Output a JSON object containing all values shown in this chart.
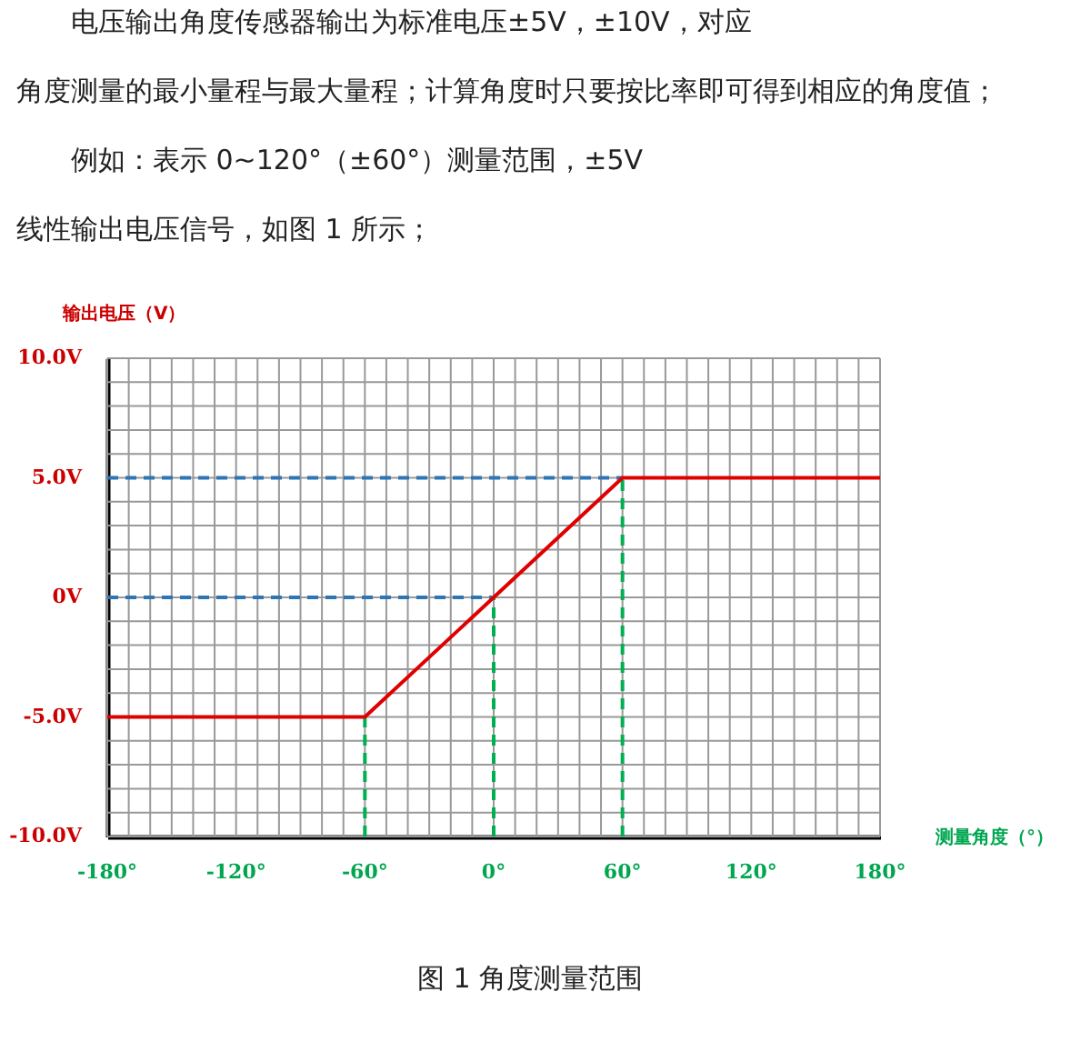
{
  "chart_data": {
    "type": "line",
    "annotations": [
      "电压输出角度传感器输出为标准电压±5V，±10V，对应",
      "角度测量的最小量程与最大量程；计算角度时只要按比率即可得到相应的角度值；",
      "例如：表示 0~120°（±60°）测量范围，±5V",
      "线性输出电压信号，如图 1 所示；",
      "图 1 角度测量范围"
    ],
    "xlabel": "测量角度（°）",
    "ylabel": "输出电压（V）",
    "xlim": [
      -180,
      180
    ],
    "ylim": [
      -10,
      10
    ],
    "xticks": [
      {
        "value": -180,
        "label": "-180°"
      },
      {
        "value": -170,
        "label": null
      },
      {
        "value": -160,
        "label": null
      },
      {
        "value": -150,
        "label": null
      },
      {
        "value": -140,
        "label": null
      },
      {
        "value": -130,
        "label": null
      },
      {
        "value": -120,
        "label": "-120°"
      },
      {
        "value": -110,
        "label": null
      },
      {
        "value": -100,
        "label": null
      },
      {
        "value": -90,
        "label": null
      },
      {
        "value": -80,
        "label": null
      },
      {
        "value": -70,
        "label": null
      },
      {
        "value": -60,
        "label": "-60°"
      },
      {
        "value": -50,
        "label": null
      },
      {
        "value": -40,
        "label": null
      },
      {
        "value": -30,
        "label": null
      },
      {
        "value": -20,
        "label": null
      },
      {
        "value": -10,
        "label": null
      },
      {
        "value": 0,
        "label": "0°"
      },
      {
        "value": 10,
        "label": null
      },
      {
        "value": 20,
        "label": null
      },
      {
        "value": 30,
        "label": null
      },
      {
        "value": 40,
        "label": null
      },
      {
        "value": 50,
        "label": null
      },
      {
        "value": 60,
        "label": "60°"
      },
      {
        "value": 70,
        "label": null
      },
      {
        "value": 80,
        "label": null
      },
      {
        "value": 90,
        "label": null
      },
      {
        "value": 100,
        "label": null
      },
      {
        "value": 110,
        "label": null
      },
      {
        "value": 120,
        "label": "120°"
      },
      {
        "value": 130,
        "label": null
      },
      {
        "value": 140,
        "label": null
      },
      {
        "value": 150,
        "label": null
      },
      {
        "value": 160,
        "label": null
      },
      {
        "value": 170,
        "label": null
      },
      {
        "value": 180,
        "label": "180°"
      }
    ],
    "yticks": [
      {
        "value": -10,
        "label": "-10.0V"
      },
      {
        "value": -9,
        "label": null
      },
      {
        "value": -8,
        "label": null
      },
      {
        "value": -7,
        "label": null
      },
      {
        "value": -6,
        "label": null
      },
      {
        "value": -5,
        "label": "-5.0V"
      },
      {
        "value": -4,
        "label": null
      },
      {
        "value": -3,
        "label": null
      },
      {
        "value": -2,
        "label": null
      },
      {
        "value": -1,
        "label": null
      },
      {
        "value": 0,
        "label": "0V"
      },
      {
        "value": 1,
        "label": null
      },
      {
        "value": 2,
        "label": null
      },
      {
        "value": 3,
        "label": null
      },
      {
        "value": 4,
        "label": null
      },
      {
        "value": 5,
        "label": "5.0V"
      },
      {
        "value": 6,
        "label": null
      },
      {
        "value": 7,
        "label": null
      },
      {
        "value": 8,
        "label": null
      },
      {
        "value": 9,
        "label": null
      },
      {
        "value": 10,
        "label": "10.0V"
      }
    ],
    "grid": true,
    "marker": "none",
    "series": [
      {
        "color": "#2e75b6",
        "line_style": "dashed",
        "x": [
          -180,
          60
        ],
        "values": [
          5,
          5
        ]
      },
      {
        "color": "#2e75b6",
        "line_style": "dashed",
        "x": [
          -180,
          0
        ],
        "values": [
          0,
          0
        ]
      },
      {
        "color": "#00b050",
        "line_style": "dashed",
        "x": [
          -60,
          -60
        ],
        "values": [
          -10,
          -5
        ]
      },
      {
        "color": "#00b050",
        "line_style": "dashed",
        "x": [
          0,
          0
        ],
        "values": [
          -10,
          0
        ]
      },
      {
        "color": "#00b050",
        "line_style": "dashed",
        "x": [
          60,
          60
        ],
        "values": [
          -10,
          5
        ]
      },
      {
        "color": "#e00000",
        "line_style": "solid",
        "x": [
          -180,
          -60,
          60,
          180
        ],
        "values": [
          -5,
          -5,
          5,
          5
        ]
      }
    ]
  }
}
